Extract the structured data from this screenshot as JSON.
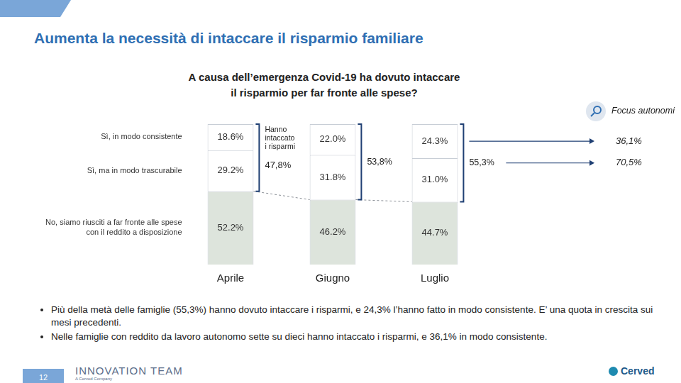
{
  "header": {
    "title": "Aumenta la necessità di intaccare il risparmio familiare"
  },
  "chart_data": {
    "type": "bar",
    "stacked": true,
    "subtitle": "A causa dell’emergenza Covid-19 ha dovuto intaccare il risparmio per far fronte alle spese?",
    "categories": [
      "Aprile",
      "Giugno",
      "Luglio"
    ],
    "series": [
      {
        "name": "Sì, in modo consistente",
        "color": "#ffffff",
        "values": [
          18.6,
          22.0,
          24.3
        ],
        "value_labels": [
          "18.6%",
          "22.0%",
          "24.3%"
        ]
      },
      {
        "name": "Sì, ma in modo trascurabile",
        "color": "#ffffff",
        "values": [
          29.2,
          31.8,
          31.0
        ],
        "value_labels": [
          "29.2%",
          "31.8%",
          "31.0%"
        ]
      },
      {
        "name": "No, siamo riusciti a far fronte alle spese con il reddito a disposizione",
        "color": "#dde4dc",
        "values": [
          52.2,
          46.2,
          44.7
        ],
        "value_labels": [
          "52.2%",
          "46.2%",
          "44.7%"
        ]
      }
    ],
    "ylim": [
      0,
      100
    ],
    "tick_labels": "x",
    "grid": false,
    "data_labels": true,
    "annotations": {
      "group_label": "Hanno intaccato i risparmi",
      "group_totals": [
        47.8,
        53.8,
        55.3
      ],
      "group_total_labels": [
        "47,8%",
        "53,8%",
        "55,3%"
      ],
      "focus": {
        "label": "Focus autonomi",
        "values": [
          36.1,
          70.5
        ],
        "value_labels": [
          "36,1%",
          "70,5%"
        ]
      }
    }
  },
  "bullets": [
    "Più della metà delle famiglie (55,3%) hanno dovuto intaccare i risparmi, e 24,3% l’hanno fatto in modo consistente. E’ una quota in crescita sui mesi precedenti.",
    "Nelle famiglie con reddito da lavoro autonomo sette su dieci hanno intaccato i risparmi, e 36,1% in modo consistente."
  ],
  "footer": {
    "page": "12",
    "brand": "INNOVATION TEAM",
    "brand_sub": "A Cerved Company",
    "logo": "Cerved"
  }
}
